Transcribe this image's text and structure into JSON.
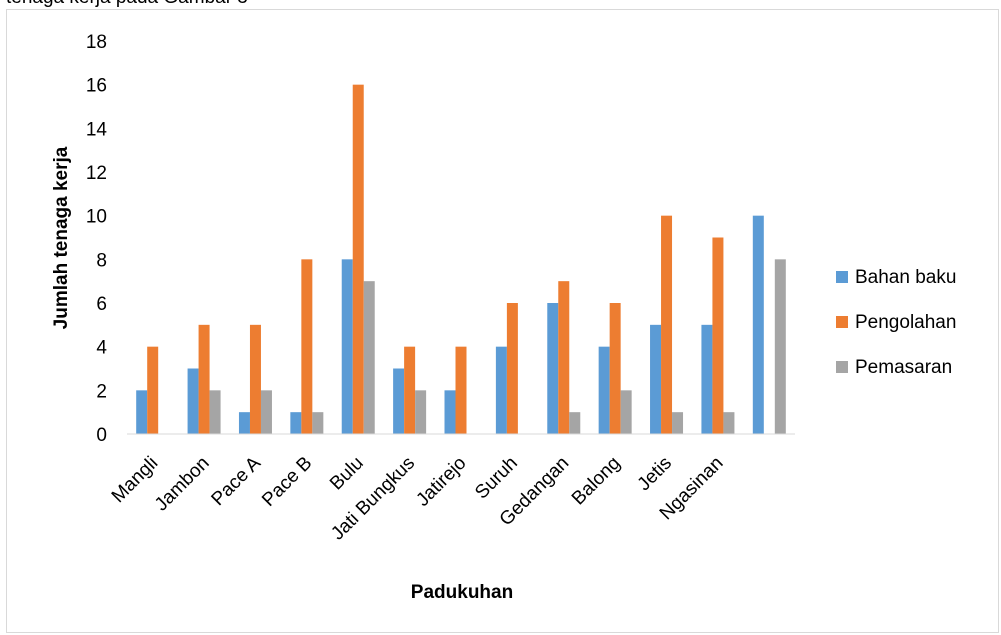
{
  "caption_fragment": "tenaga kerja pada Gambar 3",
  "chart_data": {
    "type": "bar",
    "title": "",
    "xlabel": "Padukuhan",
    "ylabel": "Jumlah tenaga kerja",
    "ylim": [
      0,
      18
    ],
    "yticks": [
      0,
      2,
      4,
      6,
      8,
      10,
      12,
      14,
      16,
      18
    ],
    "grid": false,
    "legend_position": "right",
    "categories": [
      "Mangli",
      "Jambon",
      "Pace A",
      "Pace B",
      "Bulu",
      "Jati Bungkus",
      "Jatirejo",
      "Suruh",
      "Gedangan",
      "Balong",
      "Jetis",
      "Ngasinan",
      ""
    ],
    "series": [
      {
        "name": "Bahan baku",
        "color": "#5B9BD5",
        "values": [
          2,
          3,
          1,
          1,
          8,
          3,
          2,
          4,
          6,
          4,
          5,
          5,
          10
        ]
      },
      {
        "name": "Pengolahan",
        "color": "#ED7D31",
        "values": [
          4,
          5,
          5,
          8,
          16,
          4,
          4,
          6,
          7,
          6,
          10,
          9,
          0
        ]
      },
      {
        "name": "Pemasaran",
        "color": "#A5A5A5",
        "values": [
          0,
          2,
          2,
          1,
          7,
          2,
          0,
          0,
          1,
          2,
          1,
          1,
          8
        ]
      }
    ]
  }
}
